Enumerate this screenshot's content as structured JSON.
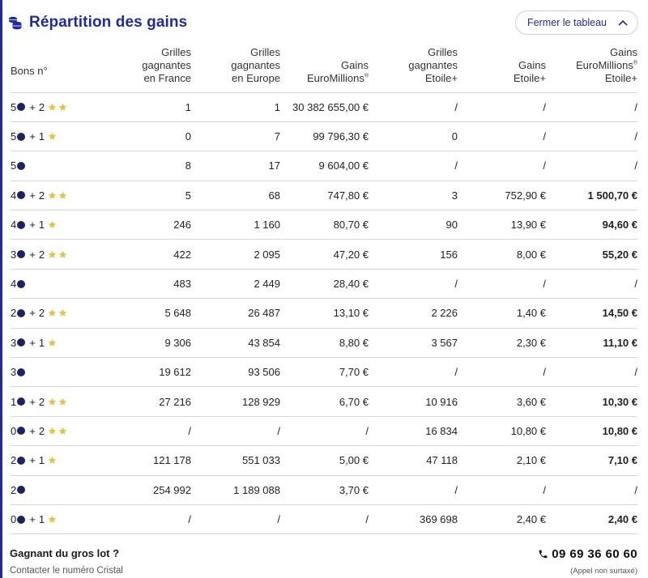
{
  "header": {
    "title": "Répartition des gains",
    "close_label": "Fermer le tableau"
  },
  "table": {
    "columns": [
      "Bons n°",
      "Grilles\ngagnantes\nen France",
      "Grilles\ngagnantes\nen Europe",
      "Gains\nEuroMillions®",
      "Grilles\ngagnantes\nEtoile+",
      "Gains\nEtoile+",
      "Gains\nEuroMillions®\nEtoile+"
    ],
    "rows": [
      {
        "balls": "5",
        "stars": 2,
        "fr": "1",
        "eu": "1",
        "gain": "30 382 655,00 €",
        "gr_et": "/",
        "g_et": "/",
        "gemt": "/"
      },
      {
        "balls": "5",
        "stars": 1,
        "fr": "0",
        "eu": "7",
        "gain": "99 796,30 €",
        "gr_et": "0",
        "g_et": "/",
        "gemt": "/"
      },
      {
        "balls": "5",
        "stars": 0,
        "fr": "8",
        "eu": "17",
        "gain": "9 604,00 €",
        "gr_et": "/",
        "g_et": "/",
        "gemt": "/"
      },
      {
        "balls": "4",
        "stars": 2,
        "fr": "5",
        "eu": "68",
        "gain": "747,80 €",
        "gr_et": "3",
        "g_et": "752,90 €",
        "gemt": "1 500,70 €"
      },
      {
        "balls": "4",
        "stars": 1,
        "fr": "246",
        "eu": "1 160",
        "gain": "80,70 €",
        "gr_et": "90",
        "g_et": "13,90 €",
        "gemt": "94,60 €"
      },
      {
        "balls": "3",
        "stars": 2,
        "fr": "422",
        "eu": "2 095",
        "gain": "47,20 €",
        "gr_et": "156",
        "g_et": "8,00 €",
        "gemt": "55,20 €"
      },
      {
        "balls": "4",
        "stars": 0,
        "fr": "483",
        "eu": "2 449",
        "gain": "28,40 €",
        "gr_et": "/",
        "g_et": "/",
        "gemt": "/"
      },
      {
        "balls": "2",
        "stars": 2,
        "fr": "5 648",
        "eu": "26 487",
        "gain": "13,10 €",
        "gr_et": "2 226",
        "g_et": "1,40 €",
        "gemt": "14,50 €"
      },
      {
        "balls": "3",
        "stars": 1,
        "fr": "9 306",
        "eu": "43 854",
        "gain": "8,80 €",
        "gr_et": "3 567",
        "g_et": "2,30 €",
        "gemt": "11,10 €"
      },
      {
        "balls": "3",
        "stars": 0,
        "fr": "19 612",
        "eu": "93 506",
        "gain": "7,70 €",
        "gr_et": "/",
        "g_et": "/",
        "gemt": "/"
      },
      {
        "balls": "1",
        "stars": 2,
        "fr": "27 216",
        "eu": "128 929",
        "gain": "6,70 €",
        "gr_et": "10 916",
        "g_et": "3,60 €",
        "gemt": "10,30 €"
      },
      {
        "balls": "0",
        "stars": 2,
        "fr": "/",
        "eu": "/",
        "gain": "/",
        "gr_et": "16 834",
        "g_et": "10,80 €",
        "gemt": "10,80 €"
      },
      {
        "balls": "2",
        "stars": 1,
        "fr": "121 178",
        "eu": "551 033",
        "gain": "5,00 €",
        "gr_et": "47 118",
        "g_et": "2,10 €",
        "gemt": "7,10 €"
      },
      {
        "balls": "2",
        "stars": 0,
        "fr": "254 992",
        "eu": "1 189 088",
        "gain": "3,70 €",
        "gr_et": "/",
        "g_et": "/",
        "gemt": "/"
      },
      {
        "balls": "0",
        "stars": 1,
        "fr": "/",
        "eu": "/",
        "gain": "/",
        "gr_et": "369 698",
        "g_et": "2,40 €",
        "gemt": "2,40 €"
      }
    ],
    "plus_sign": "+"
  },
  "footer": {
    "title": "Gagnant du gros lot ?",
    "subtitle": "Contacter le numéro Cristal",
    "phone": "09 69 36 60 60",
    "phone_note": "(Appel non surtaxé)"
  },
  "icons": {
    "title": "coins-icon",
    "close": "chevron-up-icon",
    "ball": "ball-icon",
    "star": "star-icon",
    "phone": "phone-icon"
  },
  "colors": {
    "brand": "#1f2ba1",
    "ball": "#1c2266",
    "star": "#e8c242"
  }
}
